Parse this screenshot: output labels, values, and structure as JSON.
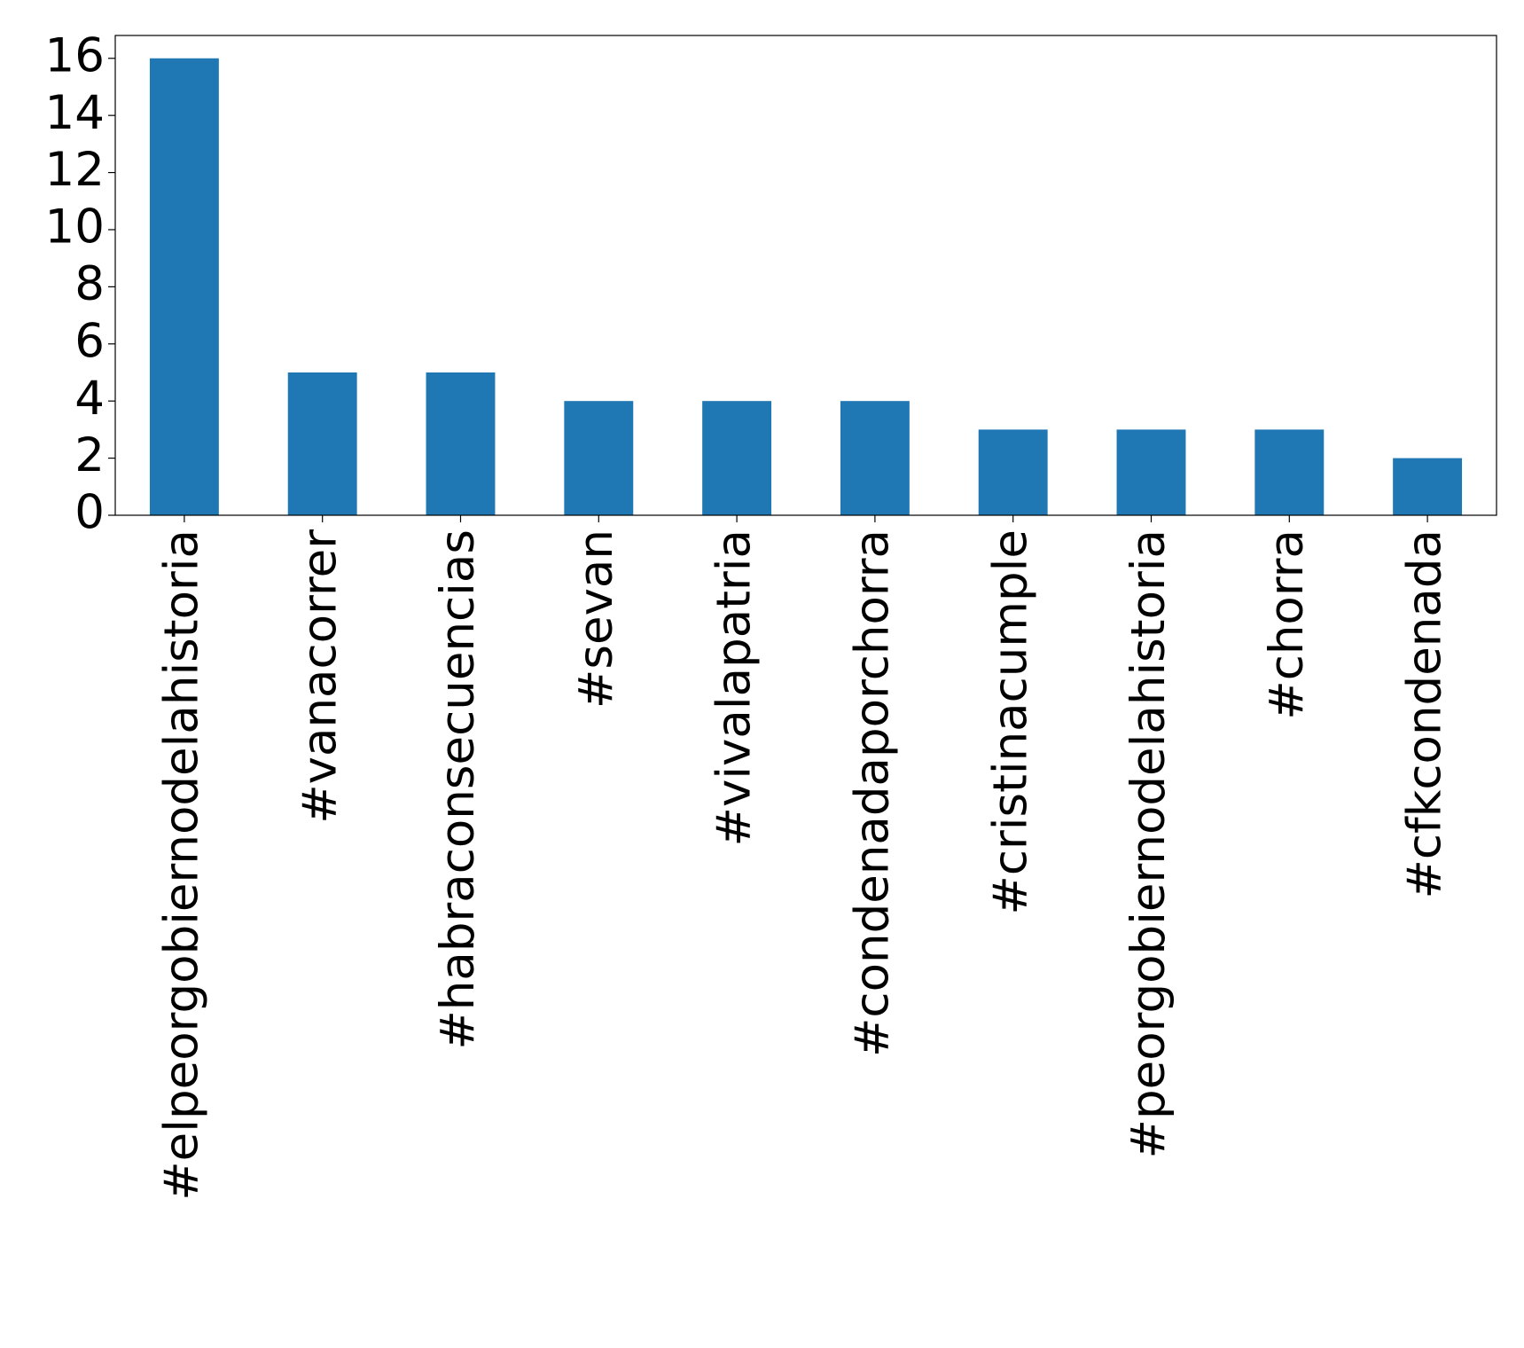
{
  "chart_data": {
    "type": "bar",
    "categories": [
      "#elpeorgobiernodelahistoria",
      "#vanacorrer",
      "#habraconsecuencias",
      "#sevan",
      "#vivalapatria",
      "#condenadaporchorra",
      "#cristinacumple",
      "#peorgobiernodelahistoria",
      "#chorra",
      "#cfkcondenada"
    ],
    "values": [
      16,
      5,
      5,
      4,
      4,
      4,
      3,
      3,
      3,
      2
    ],
    "color": "#1f77b4",
    "ylim": [
      0,
      16.8
    ],
    "yticks": [
      0,
      2,
      4,
      6,
      8,
      10,
      12,
      14,
      16
    ],
    "grid": false
  }
}
